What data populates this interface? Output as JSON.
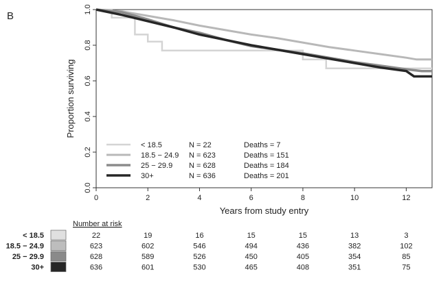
{
  "panel_label": "B",
  "chart_data": {
    "type": "line",
    "title": "",
    "xlabel": "Years from study entry",
    "ylabel": "Proportion surviving",
    "xlim": [
      0,
      13
    ],
    "ylim": [
      0,
      1
    ],
    "x_ticks": [
      0,
      2,
      4,
      6,
      8,
      10,
      12
    ],
    "y_ticks": [
      0.0,
      0.2,
      0.4,
      0.6,
      0.8,
      1.0
    ],
    "y_tick_labels": [
      "0.0",
      "0.2",
      "0.4",
      "0.6",
      "0.8",
      "1.0"
    ],
    "grid": false,
    "legend_position": "bottom-left",
    "series": [
      {
        "name": "< 18.5",
        "n_label": "N = 22",
        "deaths_label": "Deaths = 7",
        "color": "#d4d4d4",
        "points": [
          [
            0,
            1.0
          ],
          [
            0.6,
            1.0
          ],
          [
            0.6,
            0.955
          ],
          [
            1.5,
            0.955
          ],
          [
            1.5,
            0.86
          ],
          [
            2.0,
            0.86
          ],
          [
            2.0,
            0.82
          ],
          [
            2.55,
            0.82
          ],
          [
            2.55,
            0.77
          ],
          [
            8.0,
            0.77
          ],
          [
            8.0,
            0.72
          ],
          [
            8.9,
            0.72
          ],
          [
            8.9,
            0.67
          ],
          [
            13.0,
            0.67
          ]
        ]
      },
      {
        "name": "18.5 − 24.9",
        "n_label": "N = 623",
        "deaths_label": "Deaths = 151",
        "color": "#b8b8b8",
        "points": [
          [
            0,
            1.0
          ],
          [
            1,
            0.99
          ],
          [
            2,
            0.965
          ],
          [
            3,
            0.94
          ],
          [
            4,
            0.91
          ],
          [
            5,
            0.885
          ],
          [
            6,
            0.86
          ],
          [
            7,
            0.84
          ],
          [
            8,
            0.815
          ],
          [
            9,
            0.79
          ],
          [
            10,
            0.77
          ],
          [
            11,
            0.75
          ],
          [
            12,
            0.73
          ],
          [
            12.4,
            0.72
          ],
          [
            13.0,
            0.72
          ]
        ]
      },
      {
        "name": "25 − 29.9",
        "n_label": "N = 628",
        "deaths_label": "Deaths = 184",
        "color": "#8c8c8c",
        "points": [
          [
            0,
            1.0
          ],
          [
            1,
            0.985
          ],
          [
            2,
            0.945
          ],
          [
            3,
            0.9
          ],
          [
            4,
            0.87
          ],
          [
            5,
            0.83
          ],
          [
            6,
            0.795
          ],
          [
            7,
            0.775
          ],
          [
            8,
            0.755
          ],
          [
            9,
            0.73
          ],
          [
            10,
            0.705
          ],
          [
            11,
            0.685
          ],
          [
            12,
            0.665
          ],
          [
            12.6,
            0.655
          ],
          [
            13.0,
            0.655
          ]
        ]
      },
      {
        "name": "30+",
        "n_label": "N = 636",
        "deaths_label": "Deaths = 201",
        "color": "#262626",
        "points": [
          [
            0,
            1.0
          ],
          [
            1,
            0.97
          ],
          [
            2,
            0.935
          ],
          [
            3,
            0.9
          ],
          [
            4,
            0.86
          ],
          [
            5,
            0.83
          ],
          [
            6,
            0.8
          ],
          [
            7,
            0.775
          ],
          [
            8,
            0.75
          ],
          [
            9,
            0.725
          ],
          [
            10,
            0.7
          ],
          [
            11,
            0.675
          ],
          [
            12,
            0.655
          ],
          [
            12.3,
            0.625
          ],
          [
            13.0,
            0.625
          ]
        ]
      }
    ]
  },
  "risk_table": {
    "header": "Number at risk",
    "rows": [
      {
        "label": "< 18.5",
        "swatch": "#e0e0e0",
        "values": [
          "22",
          "19",
          "16",
          "15",
          "15",
          "13",
          "3"
        ]
      },
      {
        "label": "18.5 − 24.9",
        "swatch": "#bdbdbd",
        "values": [
          "623",
          "602",
          "546",
          "494",
          "436",
          "382",
          "102"
        ]
      },
      {
        "label": "25 − 29.9",
        "swatch": "#8a8a8a",
        "values": [
          "628",
          "589",
          "526",
          "450",
          "405",
          "354",
          "85"
        ]
      },
      {
        "label": "30+",
        "swatch": "#262626",
        "values": [
          "636",
          "601",
          "530",
          "465",
          "408",
          "351",
          "75"
        ]
      }
    ]
  }
}
